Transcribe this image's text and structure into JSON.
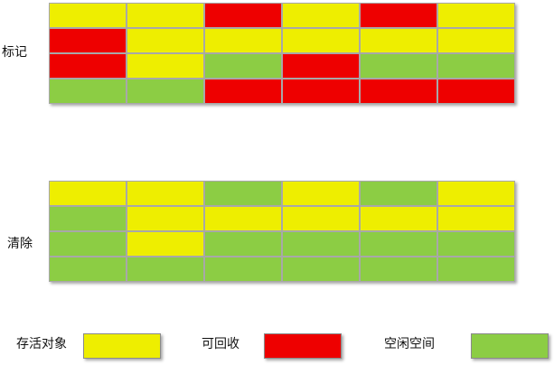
{
  "colors": {
    "live": "#eeee00",
    "reclaimable": "#ee0000",
    "free": "#8ccd44"
  },
  "mark_section": {
    "label": "标记",
    "rows": [
      [
        "live",
        "live",
        "reclaimable",
        "live",
        "reclaimable",
        "live"
      ],
      [
        "reclaimable",
        "live",
        "live",
        "live",
        "live",
        "live"
      ],
      [
        "reclaimable",
        "live",
        "free",
        "reclaimable",
        "free",
        "free"
      ],
      [
        "free",
        "free",
        "reclaimable",
        "reclaimable",
        "reclaimable",
        "reclaimable"
      ]
    ]
  },
  "sweep_section": {
    "label": "清除",
    "rows": [
      [
        "live",
        "live",
        "free",
        "live",
        "free",
        "live"
      ],
      [
        "free",
        "live",
        "live",
        "live",
        "live",
        "live"
      ],
      [
        "free",
        "live",
        "free",
        "free",
        "free",
        "free"
      ],
      [
        "free",
        "free",
        "free",
        "free",
        "free",
        "free"
      ]
    ]
  },
  "legend": {
    "live_label": "存活对象",
    "reclaimable_label": "可回收",
    "free_label": "空闲空间"
  }
}
